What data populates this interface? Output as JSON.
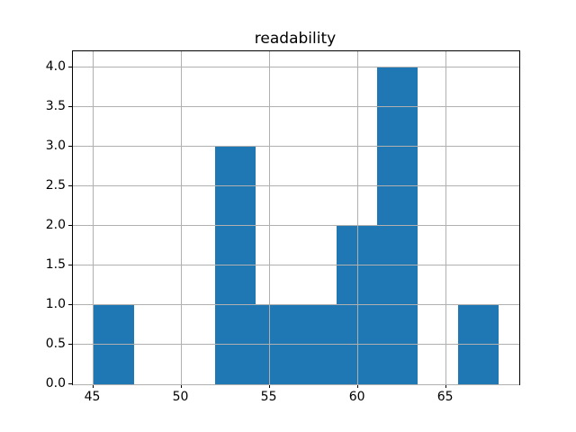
{
  "chart_data": {
    "type": "bar",
    "subtype": "histogram",
    "title": "readability",
    "xlabel": "",
    "ylabel": "",
    "bin_edges": [
      45.0,
      47.3,
      49.6,
      51.9,
      54.2,
      56.5,
      58.8,
      61.1,
      63.4,
      65.7,
      68.0
    ],
    "values": [
      1,
      0,
      0,
      3,
      1,
      1,
      2,
      4,
      0,
      1
    ],
    "x_ticks": [
      45,
      50,
      55,
      60,
      65
    ],
    "x_tick_labels": [
      "45",
      "50",
      "55",
      "60",
      "65"
    ],
    "y_ticks": [
      0.0,
      0.5,
      1.0,
      1.5,
      2.0,
      2.5,
      3.0,
      3.5,
      4.0
    ],
    "y_tick_labels": [
      "0.0",
      "0.5",
      "1.0",
      "1.5",
      "2.0",
      "2.5",
      "3.0",
      "3.5",
      "4.0"
    ],
    "xlim": [
      43.85,
      69.15
    ],
    "ylim": [
      0,
      4.2
    ],
    "grid": true,
    "grid_above_bars": true,
    "legend": null,
    "bar_color": "#1f77b4",
    "grid_color": "#b0b0b0",
    "spine_color": "#000000",
    "text_color": "#000000",
    "background_color": "#ffffff"
  }
}
